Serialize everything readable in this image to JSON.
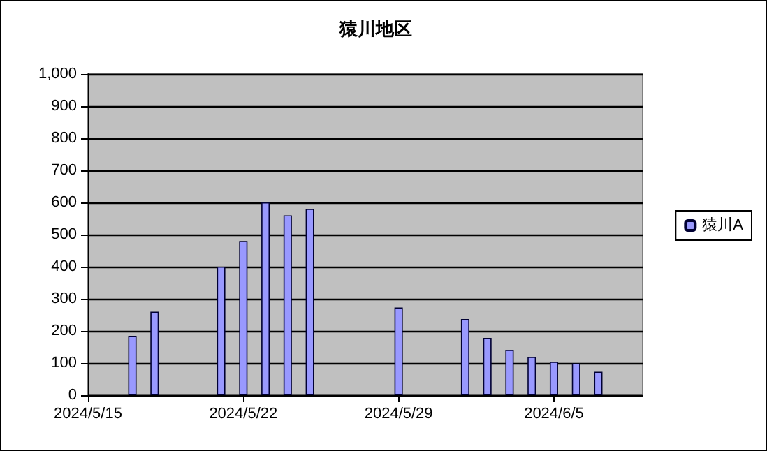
{
  "chart_data": {
    "type": "bar",
    "title": "猿川地区",
    "x": [
      "2024-05-17",
      "2024-05-18",
      "2024-05-21",
      "2024-05-22",
      "2024-05-23",
      "2024-05-24",
      "2024-05-25",
      "2024-05-29",
      "2024-06-01",
      "2024-06-02",
      "2024-06-03",
      "2024-06-04",
      "2024-06-05",
      "2024-06-06",
      "2024-06-07"
    ],
    "series": [
      {
        "name": "猿川A",
        "color": "#9999ff",
        "values": [
          185,
          260,
          400,
          480,
          600,
          560,
          580,
          273,
          237,
          178,
          141,
          119,
          104,
          99,
          73
        ]
      }
    ],
    "xlim": [
      "2024-05-15",
      "2024-06-09"
    ],
    "xticks": [
      {
        "value": "2024-05-15",
        "label": "2024/5/15"
      },
      {
        "value": "2024-05-22",
        "label": "2024/5/22"
      },
      {
        "value": "2024-05-29",
        "label": "2024/5/29"
      },
      {
        "value": "2024-06-05",
        "label": "2024/6/5"
      }
    ],
    "ylim": [
      0,
      1000
    ],
    "yticks": [
      0,
      100,
      200,
      300,
      400,
      500,
      600,
      700,
      800,
      900,
      {
        "value": 1000,
        "label": "1,000"
      }
    ],
    "grid": "y",
    "legend": "right"
  }
}
